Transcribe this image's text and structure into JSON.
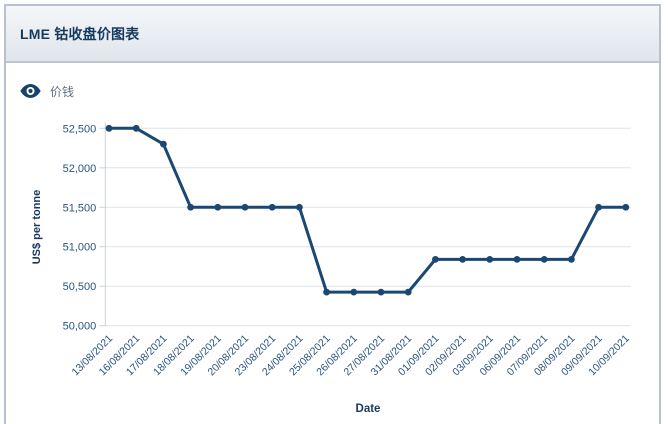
{
  "header": {
    "title": "LME 钴收盘价图表"
  },
  "legend": {
    "label": "价钱"
  },
  "chart_data": {
    "type": "line",
    "series_name": "价钱",
    "categories": [
      "13/08/2021",
      "16/08/2021",
      "17/08/2021",
      "18/08/2021",
      "19/08/2021",
      "20/08/2021",
      "23/08/2021",
      "24/08/2021",
      "25/08/2021",
      "26/08/2021",
      "27/08/2021",
      "31/08/2021",
      "01/09/2021",
      "02/09/2021",
      "03/09/2021",
      "06/09/2021",
      "07/09/2021",
      "08/09/2021",
      "09/09/2021",
      "10/09/2021"
    ],
    "values": [
      52500,
      52500,
      52300,
      51500,
      51500,
      51500,
      51500,
      51500,
      50425,
      50425,
      50425,
      50425,
      50840,
      50840,
      50840,
      50840,
      50840,
      50840,
      51500,
      51500
    ],
    "title": "LME 钴收盘价图表",
    "xlabel": "Date",
    "ylabel": "US$ per tonne",
    "ylim": [
      50000,
      52500
    ],
    "ytick_step": 500,
    "ytick_labels": [
      "50,000",
      "50,500",
      "51,000",
      "51,500",
      "52,000",
      "52,500"
    ],
    "grid": "horizontal-only",
    "legend_position": "top-left",
    "marker": "circle",
    "colors": {
      "line": "#1b4872",
      "tick_label": "#2a547e",
      "axis_title": "#16395e",
      "grid": "#dde4eb",
      "axis_line": "#c9d3dd",
      "header_title": "#16395e",
      "legend_text": "#5f7080",
      "card_border": "#b7c2ce"
    }
  }
}
